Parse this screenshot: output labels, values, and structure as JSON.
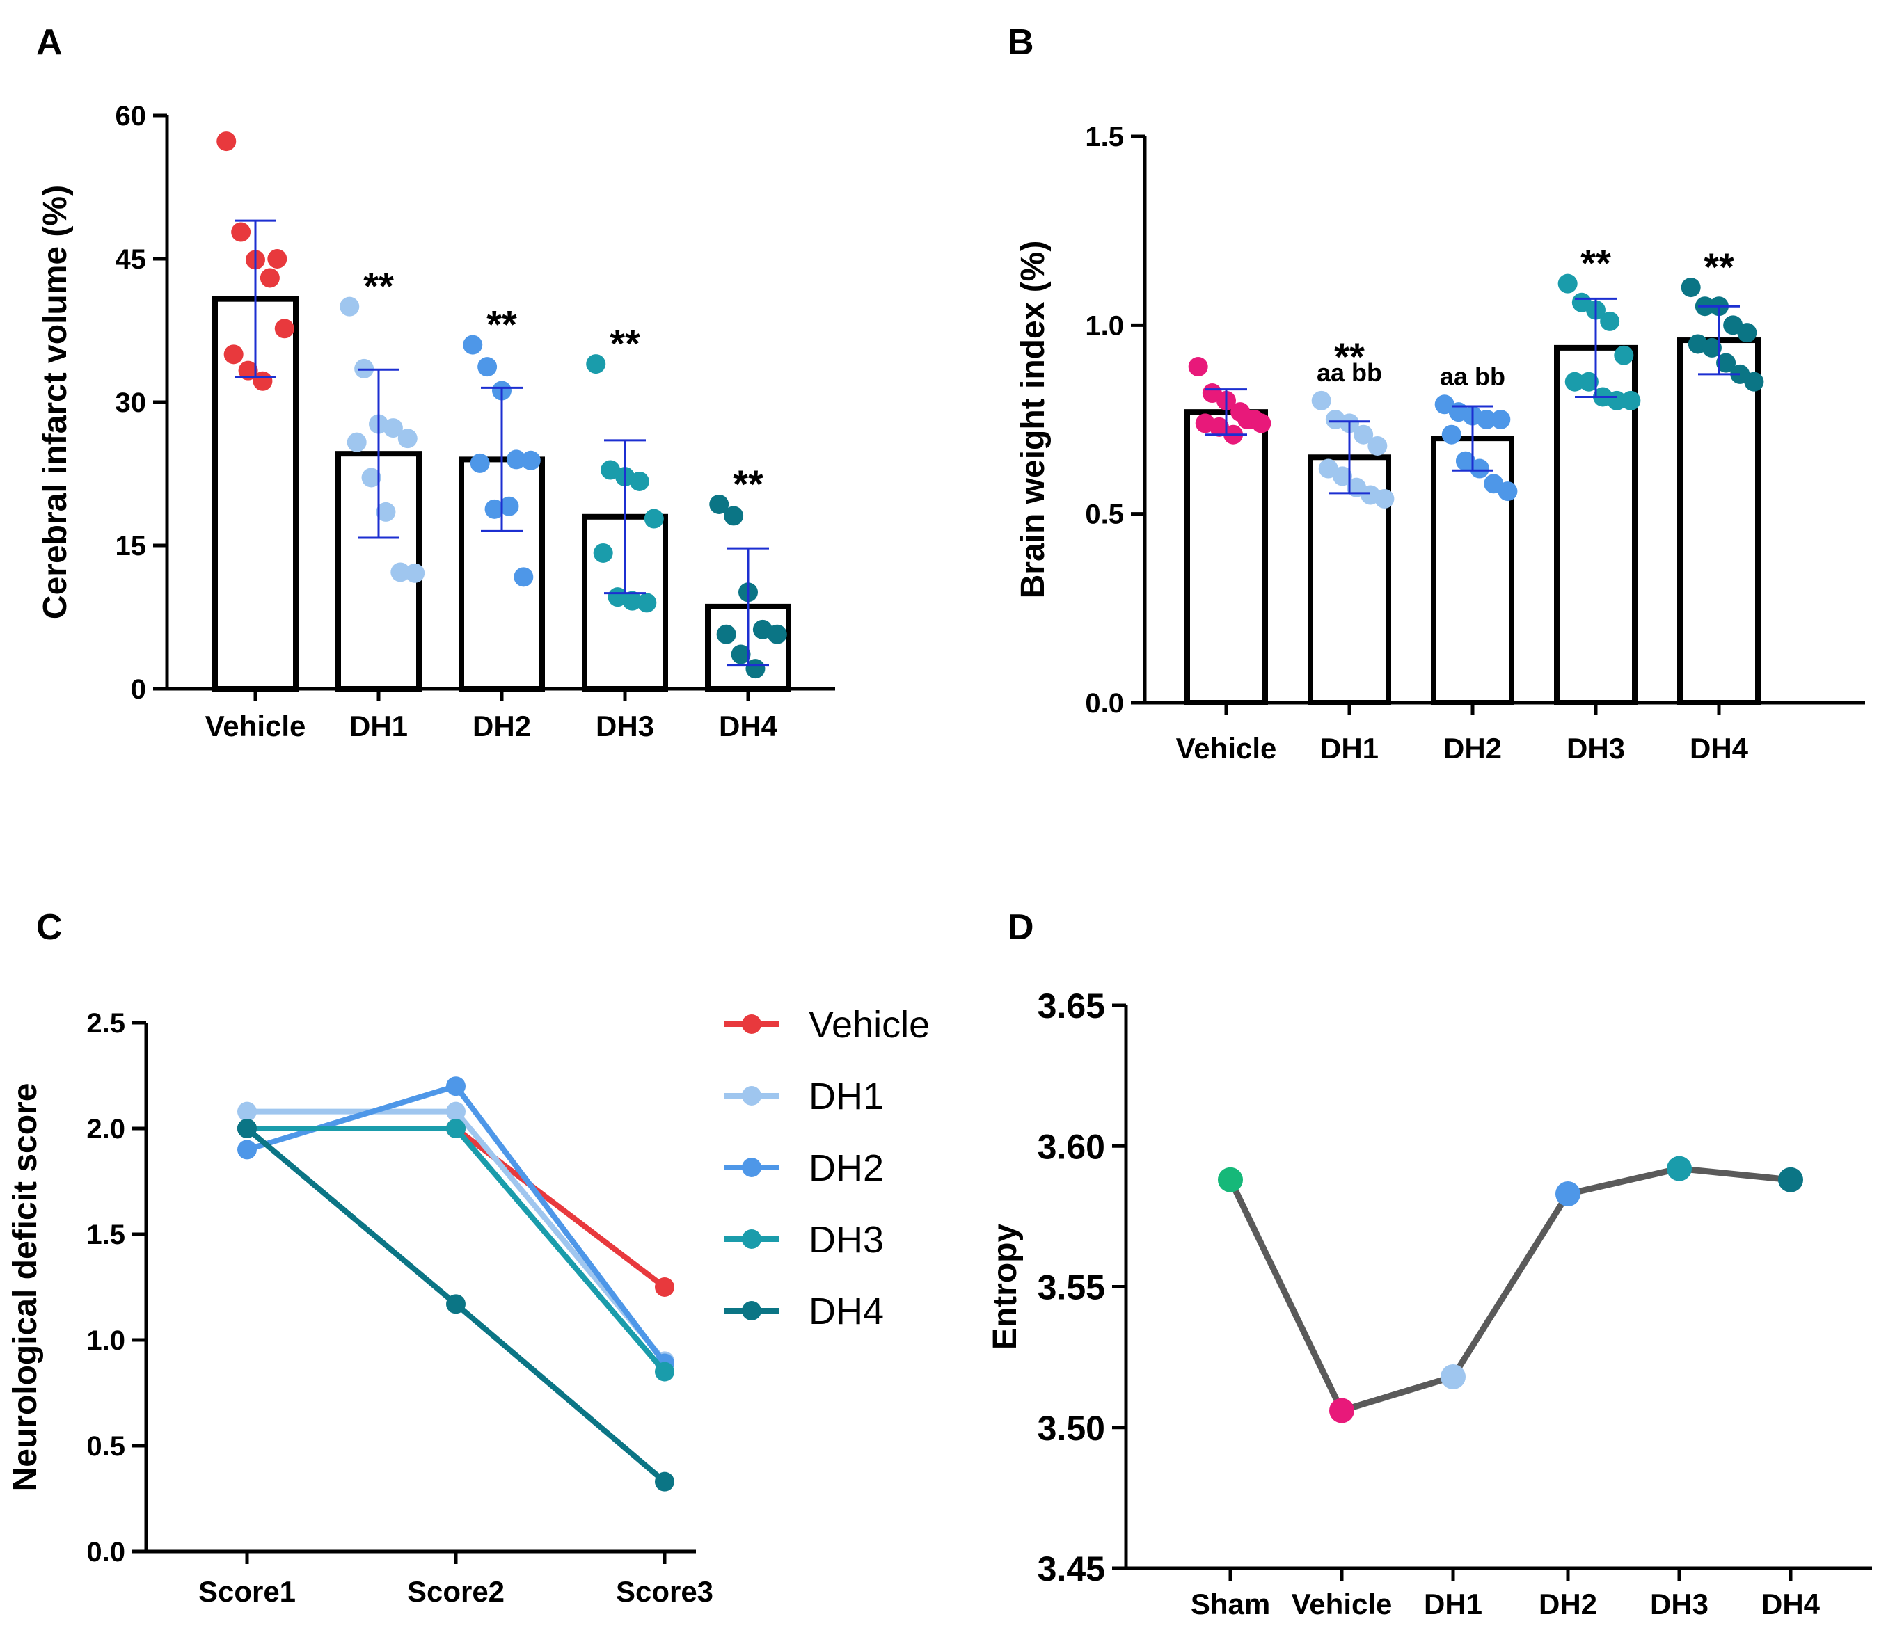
{
  "chart_data": [
    {
      "panel": "A",
      "type": "bar",
      "ylabel": "Cerebral infarct volume (%)",
      "ylim": [
        0,
        60
      ],
      "yticks": [
        0,
        15,
        30,
        45,
        60
      ],
      "categories": [
        "Vehicle",
        "DH1",
        "DH2",
        "DH3",
        "DH4"
      ],
      "values": [
        40.8,
        24.6,
        24.0,
        18.0,
        8.6
      ],
      "sd": [
        8.2,
        8.8,
        7.5,
        8.0,
        6.1
      ],
      "points": [
        [
          57.3,
          47.8,
          44.9,
          43.0,
          37.7,
          35.0,
          33.3,
          32.2,
          45.0
        ],
        [
          40.0,
          33.5,
          27.7,
          27.3,
          26.2,
          25.8,
          22.1,
          18.5,
          12.2,
          12.1
        ],
        [
          36.0,
          33.7,
          31.2,
          24.0,
          23.9,
          23.6,
          18.8,
          19.1,
          11.7
        ],
        [
          34.0,
          22.9,
          22.2,
          21.7,
          17.8,
          14.2,
          9.6,
          9.2,
          9.0
        ],
        [
          19.3,
          18.1,
          10.1,
          6.2,
          5.7,
          5.7,
          3.6,
          2.1
        ]
      ],
      "colors": [
        "#e8393d",
        "#9fc6ef",
        "#4e97e8",
        "#1a9cab",
        "#0b7585"
      ],
      "annotations": [
        "",
        "**",
        "**",
        "**",
        "**"
      ]
    },
    {
      "panel": "B",
      "type": "bar",
      "ylabel": "Brain weight index (%)",
      "ylim": [
        0,
        1.5
      ],
      "yticks": [
        "0.0",
        "0.5",
        "1.0",
        "1.5"
      ],
      "categories": [
        "Vehicle",
        "DH1",
        "DH2",
        "DH3",
        "DH4"
      ],
      "values": [
        0.77,
        0.65,
        0.7,
        0.94,
        0.96
      ],
      "sd": [
        0.06,
        0.095,
        0.085,
        0.13,
        0.09
      ],
      "points": [
        [
          0.89,
          0.82,
          0.8,
          0.77,
          0.75,
          0.74,
          0.73,
          0.71,
          0.75,
          0.74
        ],
        [
          0.8,
          0.75,
          0.74,
          0.71,
          0.68,
          0.62,
          0.6,
          0.57,
          0.55,
          0.54
        ],
        [
          0.79,
          0.77,
          0.76,
          0.75,
          0.75,
          0.71,
          0.64,
          0.62,
          0.58,
          0.56
        ],
        [
          1.11,
          1.06,
          1.04,
          1.01,
          0.92,
          0.85,
          0.85,
          0.81,
          0.8,
          0.8
        ],
        [
          1.1,
          1.05,
          1.05,
          1.0,
          0.98,
          0.95,
          0.94,
          0.9,
          0.87,
          0.85
        ]
      ],
      "colors": [
        "#e8197a",
        "#9fc6ef",
        "#4e97e8",
        "#1a9cab",
        "#0b7585"
      ],
      "annotations": [
        "",
        "**",
        "",
        "**",
        "**"
      ],
      "sub_annotations": [
        "",
        "aa bb",
        "aa bb",
        "",
        ""
      ]
    },
    {
      "panel": "C",
      "type": "line",
      "ylabel": "Neurological deficit score",
      "ylim": [
        0,
        2.5
      ],
      "yticks": [
        "0.0",
        "0.5",
        "1.0",
        "1.5",
        "2.0",
        "2.5"
      ],
      "categories": [
        "Score1",
        "Score2",
        "Score3"
      ],
      "series": [
        {
          "name": "Vehicle",
          "color": "#e8393d",
          "values": [
            2.0,
            2.0,
            1.25
          ]
        },
        {
          "name": "DH1",
          "color": "#9fc6ef",
          "values": [
            2.08,
            2.08,
            0.9
          ]
        },
        {
          "name": "DH2",
          "color": "#4e97e8",
          "values": [
            1.9,
            2.2,
            0.89
          ]
        },
        {
          "name": "DH3",
          "color": "#1a9cab",
          "values": [
            2.0,
            2.0,
            0.85
          ]
        },
        {
          "name": "DH4",
          "color": "#0b7585",
          "values": [
            2.0,
            1.17,
            0.33
          ]
        }
      ]
    },
    {
      "panel": "D",
      "type": "line",
      "ylabel": "Entropy",
      "ylim": [
        3.45,
        3.65
      ],
      "yticks": [
        "3.45",
        "3.50",
        "3.55",
        "3.60",
        "3.65"
      ],
      "categories": [
        "Sham",
        "Vehicle",
        "DH1",
        "DH2",
        "DH3",
        "DH4"
      ],
      "values": [
        3.588,
        3.506,
        3.518,
        3.583,
        3.592,
        3.588
      ],
      "colors": [
        "#16b879",
        "#e8197a",
        "#9fc6ef",
        "#4e97e8",
        "#1a9cab",
        "#0b7585"
      ],
      "line_color": "#5a5a5a"
    }
  ]
}
